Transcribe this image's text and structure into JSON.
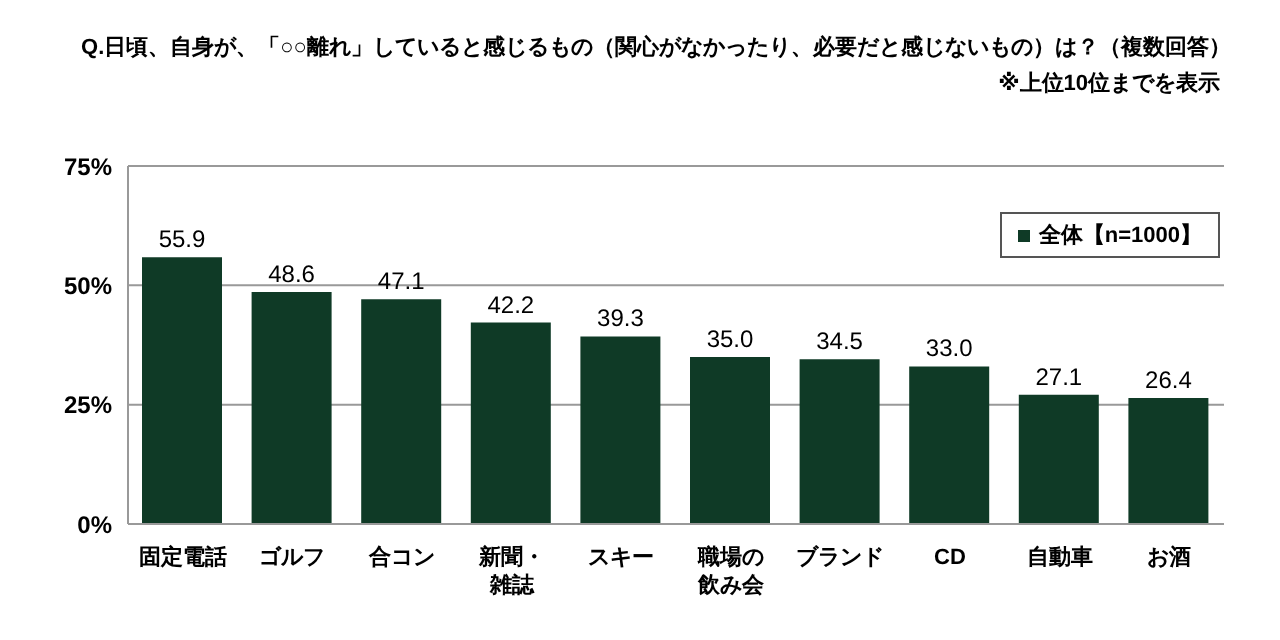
{
  "chart_data": {
    "type": "bar",
    "title": "Q.日頃、自身が、「○○離れ」していると感じるもの（関心がなかったり、必要だと感じないもの）は？（複数回答）",
    "annotations": [
      "※上位10位までを表示"
    ],
    "categories": [
      "固定電話",
      "ゴルフ",
      "合コン",
      "新聞・雑誌",
      "スキー",
      "職場の飲み会",
      "ブランド",
      "CD",
      "自動車",
      "お酒"
    ],
    "series": [
      {
        "name": "全体【n=1000】",
        "color": "#0f3a26",
        "values": [
          55.9,
          48.6,
          47.1,
          42.2,
          39.3,
          35.0,
          34.5,
          33.0,
          27.1,
          26.4
        ],
        "value_labels": [
          "55.9",
          "48.6",
          "47.1",
          "42.2",
          "39.3",
          "35.0",
          "34.5",
          "33.0",
          "27.1",
          "26.4"
        ]
      }
    ],
    "ylim": [
      0,
      75
    ],
    "yticks": [
      {
        "value": 0,
        "label": "0%"
      },
      {
        "value": 25,
        "label": "25%"
      },
      {
        "value": 50,
        "label": "50%"
      },
      {
        "value": 75,
        "label": "75%"
      }
    ],
    "grid": "y",
    "legend": "top right"
  }
}
